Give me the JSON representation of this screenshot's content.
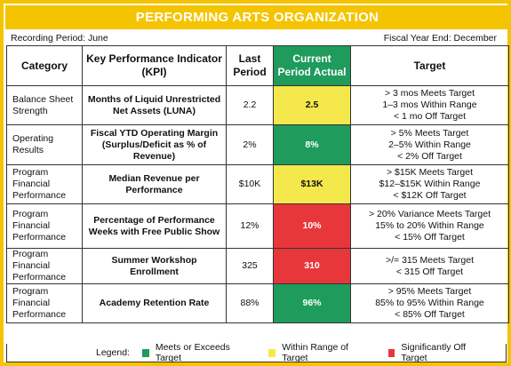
{
  "title": "PERFORMING ARTS ORGANIZATION",
  "recording_period": "Recording Period: June",
  "fiscal_year_end": "Fiscal Year End: December",
  "headers": {
    "category": "Category",
    "kpi": "Key Performance Indicator (KPI)",
    "last_period": "Last Period",
    "current_period": "Current Period Actual",
    "target": "Target"
  },
  "rows": [
    {
      "category": "Balance Sheet Strength",
      "kpi": "Months of Liquid Unrestricted Net Assets (LUNA)",
      "last": "2.2",
      "current": "2.5",
      "status": "yellow",
      "target": [
        "> 3 mos Meets Target",
        "1–3 mos Within Range",
        "< 1 mo Off Target"
      ]
    },
    {
      "category": "Operating Results",
      "kpi": "Fiscal YTD Operating Margin (Surplus/Deficit as % of Revenue)",
      "last": "2%",
      "current": "8%",
      "status": "green",
      "target": [
        "> 5% Meets Target",
        "2–5% Within Range",
        "< 2% Off Target"
      ]
    },
    {
      "category": "Program Financial Performance",
      "kpi": "Median Revenue per Performance",
      "last": "$10K",
      "current": "$13K",
      "status": "yellow",
      "target": [
        "> $15K Meets Target",
        "$12–$15K Within Range",
        "< $12K Off Target"
      ]
    },
    {
      "category": "Program Financial Performance",
      "kpi": "Percentage of Performance Weeks with Free Public Show",
      "last": "12%",
      "current": "10%",
      "status": "red",
      "target": [
        "> 20% Variance Meets Target",
        "15% to 20% Within Range",
        "< 15% Off Target"
      ]
    },
    {
      "category": "Program Financial Performance",
      "kpi": "Summer Workshop Enrollment",
      "last": "325",
      "current": "310",
      "status": "red",
      "target": [
        ">/= 315 Meets Target",
        "< 315 Off Target"
      ]
    },
    {
      "category": "Program Financial Performance",
      "kpi": "Academy Retention Rate",
      "last": "88%",
      "current": "96%",
      "status": "green",
      "target": [
        "> 95% Meets Target",
        "85% to 95% Within Range",
        "< 85% Off Target"
      ]
    }
  ],
  "legend": {
    "label": "Legend:",
    "items": [
      {
        "color": "#1f9b5c",
        "text": "Meets or Exceeds Target"
      },
      {
        "color": "#f4e84c",
        "text": "Within Range of Target"
      },
      {
        "color": "#e8373a",
        "text": "Significantly Off Target"
      }
    ]
  }
}
